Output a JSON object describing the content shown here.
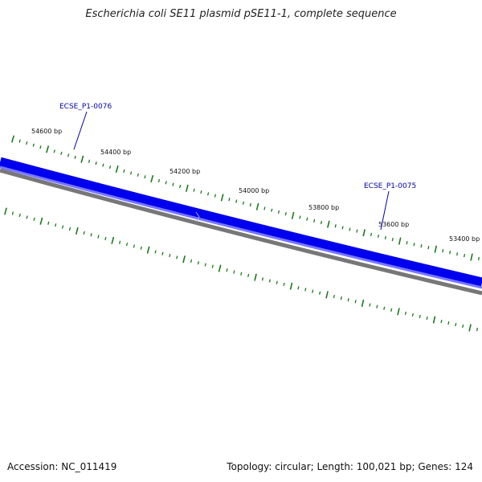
{
  "title": "Escherichia coli SE11 plasmid pSE11-1, complete sequence",
  "footer": {
    "accession": "Accession: NC_011419",
    "summary": "Topology: circular; Length: 100,021 bp; Genes: 124"
  },
  "ticks": [
    {
      "position_bp": 54600,
      "label": "54600 bp"
    },
    {
      "position_bp": 54400,
      "label": "54400 bp"
    },
    {
      "position_bp": 54200,
      "label": "54200 bp"
    },
    {
      "position_bp": 54000,
      "label": "54000 bp"
    },
    {
      "position_bp": 53800,
      "label": "53800 bp"
    },
    {
      "position_bp": 53600,
      "label": "53600 bp"
    },
    {
      "position_bp": 53400,
      "label": "53400 bp"
    }
  ],
  "genes": [
    {
      "name": "ECSE_P1-0076"
    },
    {
      "name": "ECSE_P1-0075"
    }
  ],
  "colors": {
    "gene_track": "#0000ee",
    "gene_highlight": "#7777ff",
    "backbone": "#777777",
    "ticks": "#1a7a1a",
    "labels": "#0000aa"
  }
}
